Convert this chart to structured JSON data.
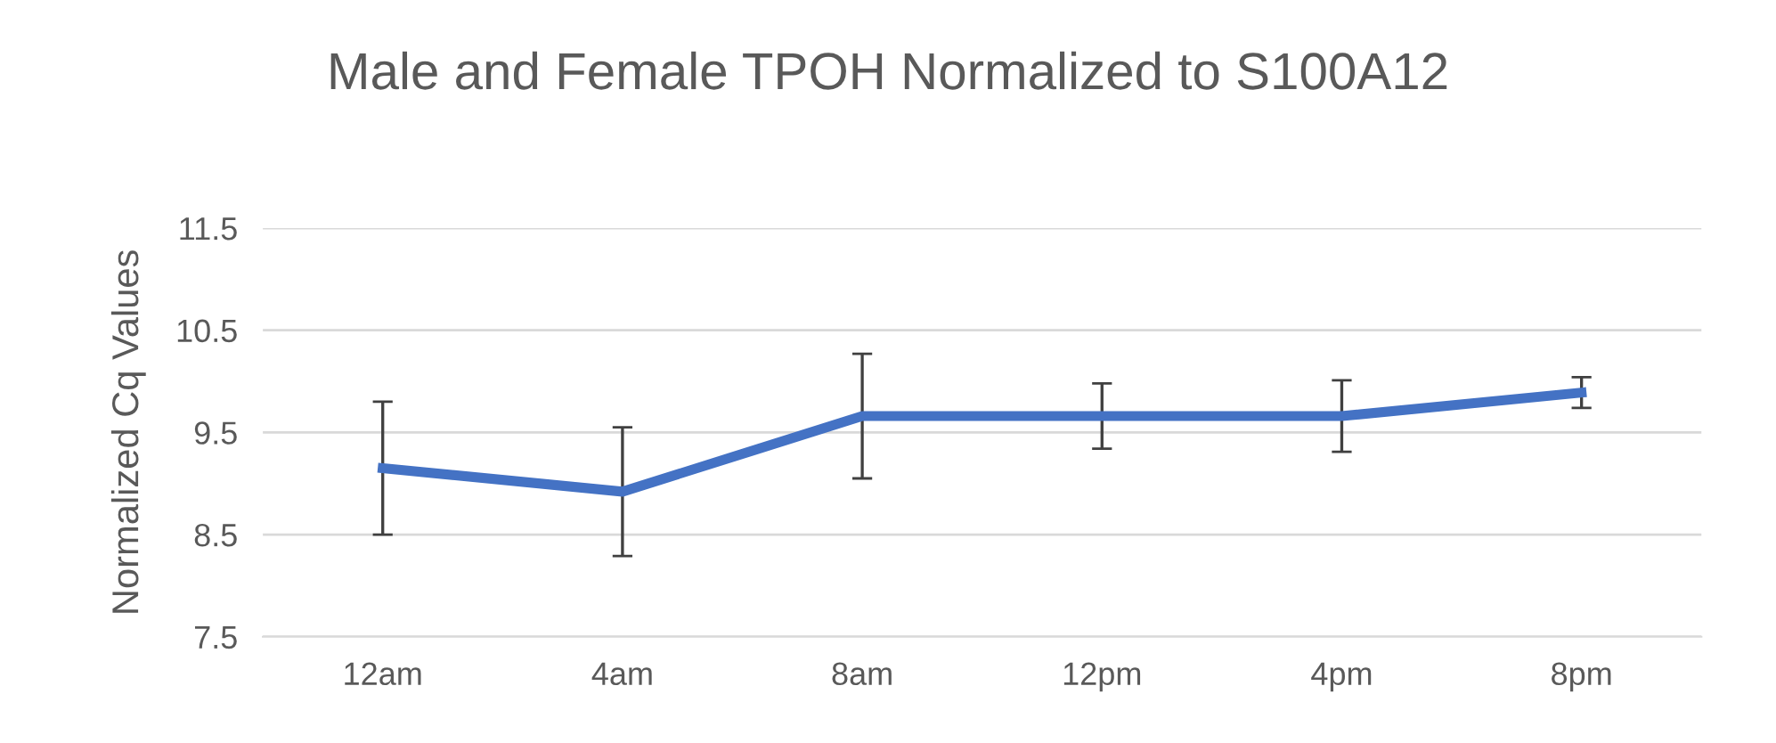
{
  "chart_data": {
    "type": "line",
    "title": "Male and Female TPOH Normalized to S100A12",
    "ylabel": "Normalized Cq Values",
    "categories": [
      "12am",
      "4am",
      "8am",
      "12pm",
      "4pm",
      "8pm"
    ],
    "series": [
      {
        "color": "#4472c4",
        "values": [
          9.15,
          8.92,
          9.66,
          9.66,
          9.66,
          9.89
        ],
        "errors": [
          0.65,
          0.63,
          0.61,
          0.32,
          0.35,
          0.15
        ]
      }
    ],
    "ylim": [
      7.5,
      11.5
    ],
    "yticks": [
      7.5,
      8.5,
      9.5,
      10.5,
      11.5
    ],
    "grid": "y",
    "legend": false,
    "marker": "none",
    "line_style": "solid"
  }
}
